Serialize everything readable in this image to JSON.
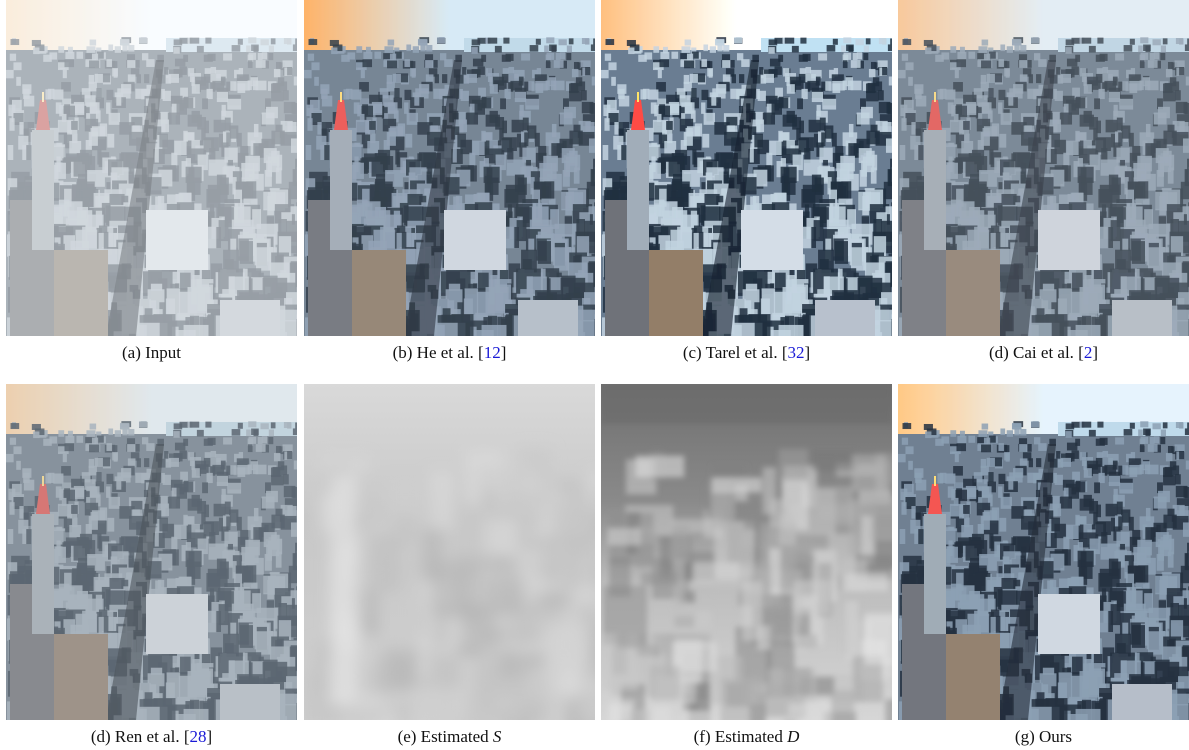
{
  "figure": {
    "panels": [
      {
        "id": "a",
        "kind": "input",
        "caption_pre": "(a) Input",
        "ref": "",
        "caption_post": "",
        "math": ""
      },
      {
        "id": "b",
        "kind": "he",
        "caption_pre": "(b) He et al. [",
        "ref": "12",
        "caption_post": "]",
        "math": ""
      },
      {
        "id": "c",
        "kind": "tarel",
        "caption_pre": "(c) Tarel et al. [",
        "ref": "32",
        "caption_post": "]",
        "math": ""
      },
      {
        "id": "d",
        "kind": "cai",
        "caption_pre": "(d) Cai et al. [",
        "ref": "2",
        "caption_post": "]",
        "math": ""
      },
      {
        "id": "d2",
        "kind": "ren",
        "caption_pre": "(d) Ren et al. [",
        "ref": "28",
        "caption_post": "]",
        "math": ""
      },
      {
        "id": "e",
        "kind": "mapS",
        "caption_pre": "(e) Estimated ",
        "ref": "",
        "caption_post": "",
        "math": "S"
      },
      {
        "id": "f",
        "kind": "mapD",
        "caption_pre": "(f) Estimated ",
        "ref": "",
        "caption_post": "",
        "math": "D"
      },
      {
        "id": "g",
        "kind": "ours",
        "caption_pre": "(g) Ours",
        "ref": "",
        "caption_post": "",
        "math": ""
      }
    ],
    "colors": {
      "citation": "#1a1ad6",
      "sky_warm": "#f2c48a",
      "sky_haze": "#dfe6ec",
      "city_dark": "#2f3b48",
      "tower_red": "#d9534f"
    }
  }
}
